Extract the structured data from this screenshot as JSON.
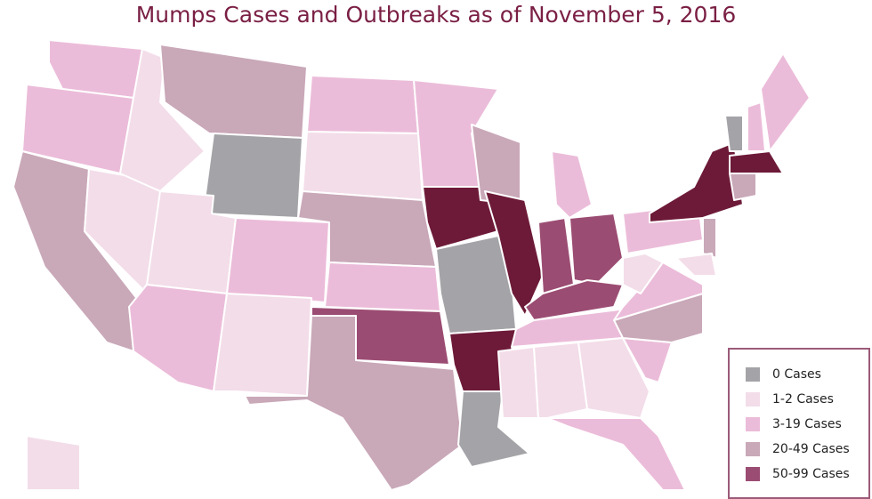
{
  "title": "Mumps Cases and Outbreaks as of November 5, 2016",
  "legend": [
    {
      "label": "0 Cases",
      "color": "#a4a4a8"
    },
    {
      "label": "1-2 Cases",
      "color": "#f3dde9"
    },
    {
      "label": "3-19 Cases",
      "color": "#ebbcd9"
    },
    {
      "label": "20-49 Cases",
      "color": "#c9a8b8"
    },
    {
      "label": "50-99 Cases",
      "color": "#9b4c72"
    }
  ],
  "colors": {
    "100+": "#6d1a38"
  },
  "states": {
    "WA": "3-19",
    "OR": "3-19",
    "CA": "20-49",
    "NV": "1-2",
    "ID": "1-2",
    "MT": "20-49",
    "WY": "0",
    "UT": "1-2",
    "AZ": "3-19",
    "CO": "3-19",
    "NM": "1-2",
    "ND": "3-19",
    "SD": "1-2",
    "NE": "20-49",
    "KS": "3-19",
    "OK": "50-99",
    "TX": "20-49",
    "MN": "3-19",
    "IA": "100+",
    "MO": "0",
    "AR": "100+",
    "LA": "0",
    "WI": "20-49",
    "IL": "100+",
    "IN": "50-99",
    "MI": "3-19",
    "OH": "50-99",
    "KY": "50-99",
    "TN": "3-19",
    "MS": "1-2",
    "AL": "1-2",
    "GA": "1-2",
    "FL": "3-19",
    "SC": "3-19",
    "NC": "20-49",
    "VA": "3-19",
    "WV": "1-2",
    "PA": "3-19",
    "NY": "100+",
    "NJ": "20-49",
    "MD": "1-2",
    "VT": "0",
    "NH": "3-19",
    "ME": "3-19",
    "MA": "100+",
    "CT": "20-49",
    "AK": "1-2"
  }
}
